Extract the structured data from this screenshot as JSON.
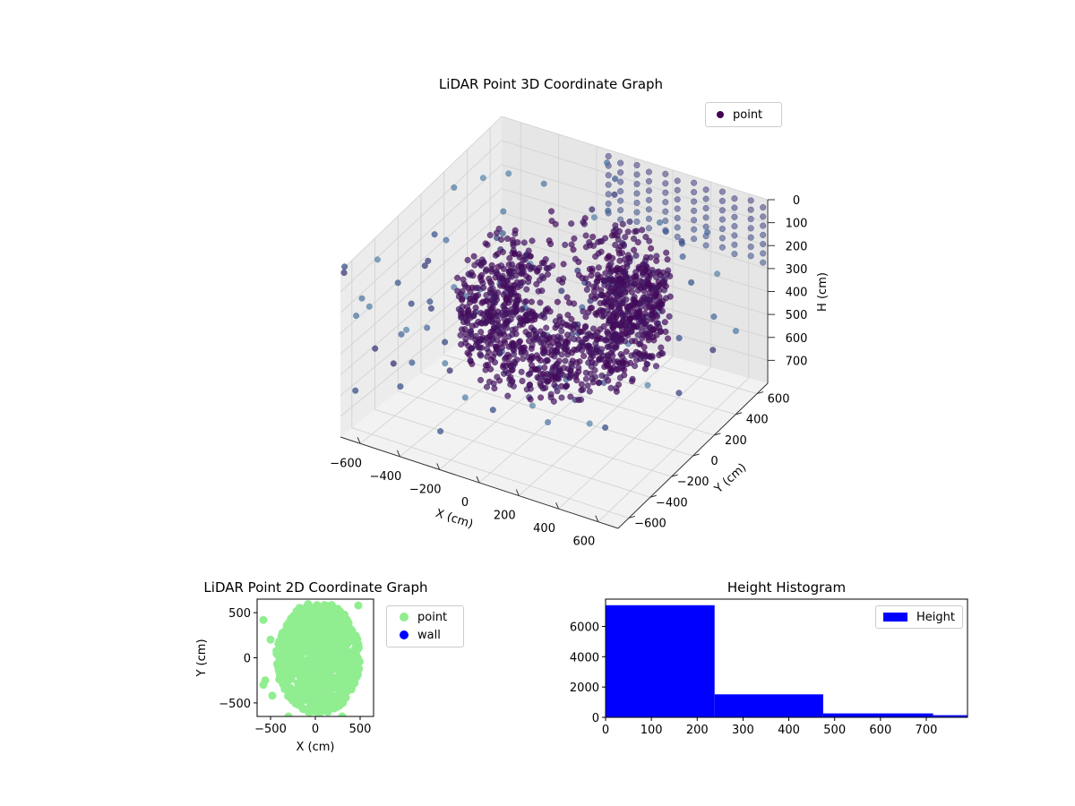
{
  "chart_data": [
    {
      "type": "scatter",
      "projection": "3d",
      "title": "LiDAR Point 3D Coordinate Graph",
      "xlabel": "X (cm)",
      "ylabel": "Y (cm)",
      "zlabel": "H (cm)",
      "xlim": [
        -700,
        700
      ],
      "ylim": [
        -700,
        700
      ],
      "zlim": [
        800,
        0
      ],
      "xticks": [
        -600,
        -400,
        -200,
        0,
        200,
        400,
        600
      ],
      "yticks": [
        -600,
        -400,
        -200,
        0,
        200,
        400,
        600
      ],
      "zticks": [
        0,
        100,
        200,
        300,
        400,
        500,
        600,
        700
      ],
      "colormap": "viridis",
      "grid": true,
      "legend": {
        "placement": "top-right",
        "entries": [
          {
            "label": "point",
            "color": "#440154"
          }
        ]
      },
      "series": [
        {
          "name": "point",
          "description_points": "ring of points at radius ~300-500 cm, heights 100-450 cm, plus sparse outliers",
          "ring": {
            "radius_range": [
              250,
              520
            ],
            "height_range": [
              120,
              450
            ]
          },
          "outlier_columns_height_range": [
            0,
            300
          ]
        }
      ]
    },
    {
      "type": "scatter",
      "title": "LiDAR Point 2D Coordinate Graph",
      "xlabel": "X (cm)",
      "ylabel": "Y (cm)",
      "xlim": [
        -650,
        650
      ],
      "ylim": [
        -650,
        650
      ],
      "xticks": [
        -500,
        0,
        500
      ],
      "yticks": [
        -500,
        0,
        500
      ],
      "legend": {
        "placement": "right-outside",
        "entries": [
          {
            "label": "point",
            "color": "#90ee90"
          },
          {
            "label": "wall",
            "color": "#0000ff"
          }
        ]
      },
      "series": [
        {
          "name": "point",
          "color": "#90ee90",
          "region": "dense disc centered near (30, 0) radius ~600"
        },
        {
          "name": "wall",
          "color": "#0000ff",
          "values": []
        }
      ]
    },
    {
      "type": "bar",
      "title": "Height Histogram",
      "xlabel": "",
      "ylabel": "",
      "xlim": [
        0,
        790
      ],
      "ylim": [
        0,
        7800
      ],
      "xticks": [
        0,
        100,
        200,
        300,
        400,
        500,
        600,
        700
      ],
      "yticks": [
        0,
        2000,
        4000,
        6000
      ],
      "legend": {
        "placement": "top-right",
        "entries": [
          {
            "label": "Height",
            "color": "#0000ff"
          }
        ]
      },
      "bins": [
        {
          "x0": 0,
          "x1": 238,
          "count": 7400
        },
        {
          "x0": 238,
          "x1": 475,
          "count": 1520
        },
        {
          "x0": 475,
          "x1": 715,
          "count": 260
        },
        {
          "x0": 715,
          "x1": 790,
          "count": 140
        }
      ],
      "color": "#0000ff"
    }
  ]
}
